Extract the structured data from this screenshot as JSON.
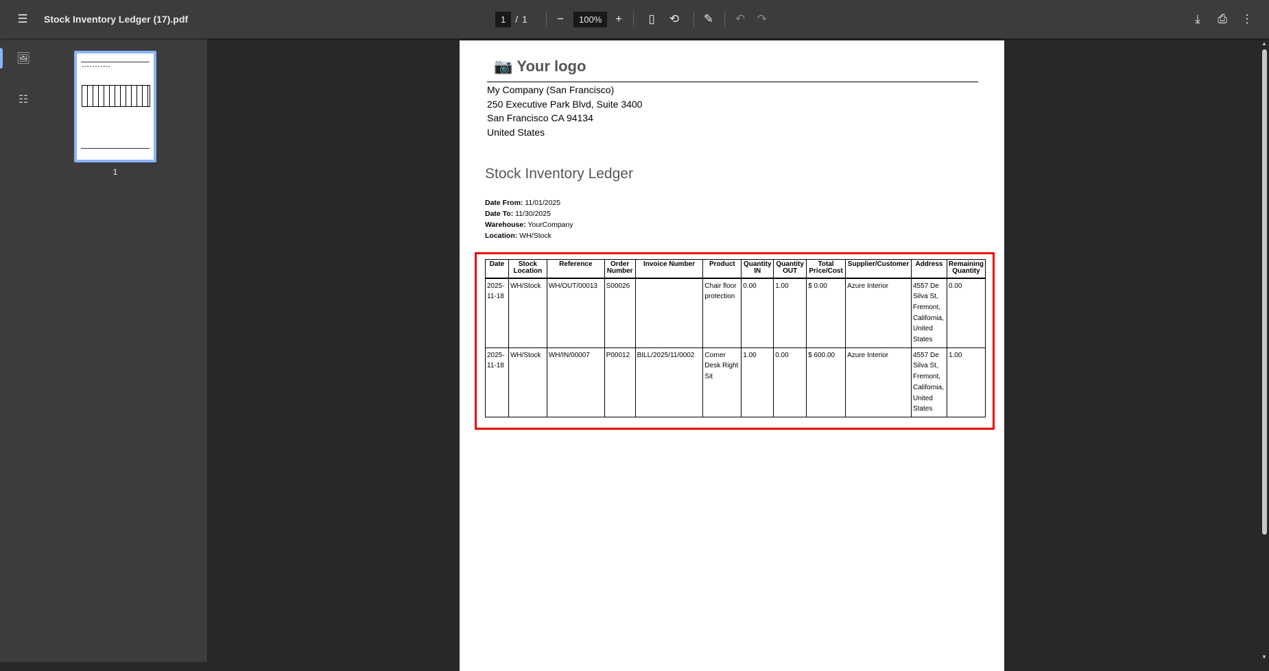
{
  "toolbar": {
    "title": "Stock Inventory Ledger (17).pdf",
    "page_current": "1",
    "page_sep": "/",
    "page_total": "1",
    "zoom": "100%"
  },
  "sidebar": {
    "thumbnail_page": "1"
  },
  "document": {
    "logo_text": "Your logo",
    "company_lines": [
      "My Company (San Francisco)",
      "250 Executive Park Blvd, Suite 3400",
      "San Francisco CA 94134",
      "United States"
    ],
    "title": "Stock Inventory Ledger",
    "meta": [
      {
        "label": "Date From:",
        "value": "11/01/2025"
      },
      {
        "label": "Date To:",
        "value": "11/30/2025"
      },
      {
        "label": "Warehouse:",
        "value": "YourCompany"
      },
      {
        "label": "Location:",
        "value": "WH/Stock"
      }
    ],
    "table": {
      "headers": [
        "Date",
        "Stock Location",
        "Reference",
        "Order Number",
        "Invoice Number",
        "Product",
        "Quantity IN",
        "Quantity OUT",
        "Total Price/Cost",
        "Supplier/Customer",
        "Address",
        "Remaining Quantity"
      ],
      "rows": [
        [
          "2025-11-18",
          "WH/Stock",
          "WH/OUT/00013",
          "S00026",
          "",
          "Chair floor protection",
          "0.00",
          "1.00",
          "$ 0.00",
          "Azure Interior",
          "4557 De Silva St, Fremont, California, United States",
          "0.00"
        ],
        [
          "2025-11-18",
          "WH/Stock",
          "WH/IN/00007",
          "P00012",
          "BILL/2025/11/0002",
          "Corner Desk Right Sit",
          "1.00",
          "0.00",
          "$ 600.00",
          "Azure Interior",
          "4557 De Silva St, Fremont, California, United States",
          "1.00"
        ]
      ]
    }
  },
  "colors": {
    "highlight": "#e00000",
    "toolbar_bg": "#3c3c3c",
    "accent": "#8ab4f8"
  }
}
